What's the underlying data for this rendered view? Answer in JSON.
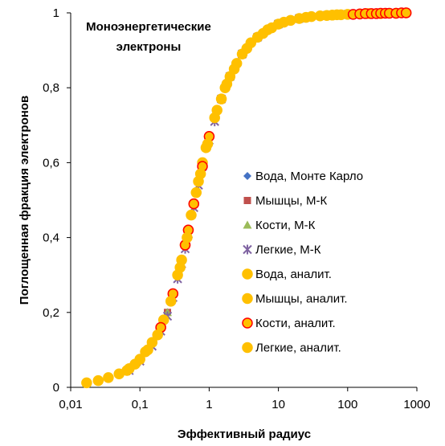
{
  "chart_data": {
    "type": "scatter",
    "annotation": [
      "Моноэнергетические",
      "электроны"
    ],
    "xlabel": "Эффективный радиус",
    "ylabel": "Поглощенная фракция электронов",
    "x_scale": "log",
    "xlim": [
      0.01,
      1000
    ],
    "ylim": [
      0,
      1
    ],
    "x_tick_labels": [
      "0,01",
      "0,1",
      "1",
      "10",
      "100",
      "1000"
    ],
    "y_tick_labels": [
      "0",
      "0,2",
      "0,4",
      "0,6",
      "0,8",
      "1"
    ],
    "grid": false,
    "legend_position": "right",
    "series": [
      {
        "name": "Вода, Монте Карло",
        "marker": "diamond",
        "color": "#4472C4",
        "points": [
          [
            0.017,
            0.012
          ],
          [
            0.035,
            0.026
          ],
          [
            0.07,
            0.05
          ],
          [
            0.1,
            0.075
          ],
          [
            0.15,
            0.12
          ],
          [
            0.2,
            0.16
          ],
          [
            0.25,
            0.2
          ],
          [
            0.3,
            0.25
          ],
          [
            0.35,
            0.3
          ],
          [
            0.4,
            0.34
          ],
          [
            0.45,
            0.38
          ],
          [
            0.5,
            0.42
          ],
          [
            0.55,
            0.46
          ],
          [
            0.6,
            0.49
          ],
          [
            0.7,
            0.55
          ],
          [
            0.8,
            0.6
          ],
          [
            0.9,
            0.64
          ],
          [
            1,
            0.67
          ],
          [
            1.2,
            0.72
          ],
          [
            1.5,
            0.77
          ],
          [
            2,
            0.83
          ],
          [
            3,
            0.89
          ],
          [
            5,
            0.935
          ],
          [
            7,
            0.955
          ],
          [
            10,
            0.97
          ],
          [
            20,
            0.985
          ],
          [
            50,
            0.993
          ],
          [
            100,
            0.996
          ],
          [
            200,
            0.998
          ],
          [
            500,
            0.999
          ],
          [
            700,
            1
          ]
        ]
      },
      {
        "name": "Мышцы, М-К",
        "marker": "square",
        "color": "#C0504D",
        "points": [
          [
            0.017,
            0.012
          ],
          [
            0.035,
            0.026
          ],
          [
            0.07,
            0.05
          ],
          [
            0.1,
            0.075
          ],
          [
            0.15,
            0.12
          ],
          [
            0.2,
            0.16
          ],
          [
            0.25,
            0.2
          ],
          [
            0.3,
            0.25
          ],
          [
            0.35,
            0.3
          ],
          [
            0.4,
            0.34
          ],
          [
            0.45,
            0.38
          ],
          [
            0.5,
            0.42
          ],
          [
            0.55,
            0.46
          ],
          [
            0.6,
            0.49
          ],
          [
            0.7,
            0.55
          ],
          [
            0.8,
            0.6
          ],
          [
            0.9,
            0.64
          ],
          [
            1,
            0.67
          ],
          [
            1.2,
            0.72
          ],
          [
            1.5,
            0.77
          ],
          [
            2,
            0.83
          ],
          [
            3,
            0.89
          ],
          [
            5,
            0.935
          ],
          [
            7,
            0.955
          ],
          [
            10,
            0.97
          ],
          [
            20,
            0.985
          ],
          [
            50,
            0.993
          ],
          [
            100,
            0.996
          ],
          [
            200,
            0.998
          ],
          [
            500,
            0.999
          ],
          [
            700,
            1
          ]
        ]
      },
      {
        "name": "Кости, М-К",
        "marker": "triangle",
        "color": "#9BBB59",
        "points": [
          [
            0.017,
            0.012
          ],
          [
            0.035,
            0.026
          ],
          [
            0.07,
            0.05
          ],
          [
            0.1,
            0.075
          ],
          [
            0.15,
            0.12
          ],
          [
            0.2,
            0.16
          ],
          [
            0.25,
            0.2
          ],
          [
            0.3,
            0.25
          ],
          [
            0.35,
            0.3
          ],
          [
            0.4,
            0.34
          ],
          [
            0.45,
            0.38
          ],
          [
            0.5,
            0.42
          ],
          [
            0.55,
            0.46
          ],
          [
            0.6,
            0.49
          ],
          [
            0.7,
            0.55
          ],
          [
            0.8,
            0.6
          ],
          [
            0.9,
            0.64
          ],
          [
            1,
            0.67
          ],
          [
            1.2,
            0.72
          ],
          [
            1.5,
            0.77
          ],
          [
            2,
            0.83
          ],
          [
            3,
            0.89
          ],
          [
            5,
            0.935
          ],
          [
            7,
            0.955
          ],
          [
            10,
            0.97
          ],
          [
            20,
            0.985
          ],
          [
            50,
            0.993
          ],
          [
            100,
            0.996
          ],
          [
            200,
            0.998
          ],
          [
            500,
            0.999
          ],
          [
            700,
            1
          ]
        ]
      },
      {
        "name": "Легкие, М-К",
        "marker": "star",
        "color": "#8064A2",
        "points": [
          [
            0.07,
            0.045
          ],
          [
            0.1,
            0.07
          ],
          [
            0.15,
            0.11
          ],
          [
            0.2,
            0.15
          ],
          [
            0.25,
            0.19
          ],
          [
            0.3,
            0.24
          ],
          [
            0.35,
            0.29
          ],
          [
            0.4,
            0.33
          ],
          [
            0.45,
            0.37
          ],
          [
            0.5,
            0.41
          ],
          [
            0.6,
            0.48
          ],
          [
            0.7,
            0.54
          ],
          [
            0.8,
            0.59
          ],
          [
            1,
            0.66
          ],
          [
            1.2,
            0.71
          ],
          [
            1.5,
            0.77
          ],
          [
            2,
            0.83
          ],
          [
            3,
            0.89
          ],
          [
            5,
            0.935
          ],
          [
            10,
            0.97
          ],
          [
            20,
            0.985
          ],
          [
            50,
            0.993
          ],
          [
            100,
            0.996
          ],
          [
            200,
            0.998
          ],
          [
            500,
            0.999
          ]
        ]
      },
      {
        "name": "Вода, аналит.",
        "marker": "circle",
        "color": "#FFC000",
        "edge": "#FFC000",
        "points": [
          [
            0.017,
            0.012
          ],
          [
            0.035,
            0.026
          ],
          [
            0.07,
            0.05
          ],
          [
            0.1,
            0.075
          ],
          [
            0.15,
            0.12
          ],
          [
            0.2,
            0.16
          ],
          [
            0.3,
            0.25
          ],
          [
            0.4,
            0.34
          ],
          [
            0.5,
            0.42
          ],
          [
            0.6,
            0.49
          ],
          [
            0.8,
            0.6
          ],
          [
            1,
            0.67
          ],
          [
            1.5,
            0.77
          ],
          [
            2,
            0.83
          ],
          [
            3,
            0.89
          ],
          [
            5,
            0.935
          ],
          [
            10,
            0.97
          ],
          [
            20,
            0.985
          ],
          [
            50,
            0.993
          ],
          [
            100,
            0.996
          ],
          [
            200,
            0.998
          ],
          [
            500,
            0.999
          ]
        ]
      },
      {
        "name": "Мышцы, аналит.",
        "marker": "circle",
        "color": "#FFC000",
        "edge": "#FFC000",
        "points": [
          [
            0.025,
            0.018
          ],
          [
            0.05,
            0.036
          ],
          [
            0.12,
            0.095
          ],
          [
            0.22,
            0.18
          ],
          [
            0.35,
            0.3
          ],
          [
            0.45,
            0.38
          ],
          [
            0.55,
            0.46
          ],
          [
            0.7,
            0.55
          ],
          [
            0.9,
            0.64
          ],
          [
            1.2,
            0.72
          ],
          [
            1.8,
            0.81
          ],
          [
            2.5,
            0.865
          ],
          [
            4,
            0.92
          ],
          [
            7,
            0.955
          ],
          [
            15,
            0.98
          ],
          [
            30,
            0.99
          ],
          [
            70,
            0.995
          ],
          [
            150,
            0.997
          ],
          [
            300,
            0.998
          ],
          [
            700,
            1
          ]
        ]
      },
      {
        "name": "Кости, аналит.",
        "marker": "circle",
        "color": "#FFC000",
        "edge": "#FF0000",
        "points": [
          [
            0.2,
            0.16
          ],
          [
            0.3,
            0.25
          ],
          [
            0.45,
            0.38
          ],
          [
            0.5,
            0.42
          ],
          [
            0.6,
            0.49
          ],
          [
            0.8,
            0.59
          ],
          [
            1,
            0.67
          ],
          [
            120,
            0.996
          ],
          [
            150,
            0.997
          ],
          [
            180,
            0.998
          ],
          [
            220,
            0.998
          ],
          [
            260,
            0.998
          ],
          [
            300,
            0.999
          ],
          [
            350,
            0.999
          ],
          [
            400,
            0.999
          ],
          [
            500,
            0.999
          ],
          [
            600,
            1
          ],
          [
            700,
            1
          ]
        ]
      },
      {
        "name": "Легкие, аналит.",
        "marker": "circle",
        "color": "#FFC000",
        "edge": "#FFC000",
        "points": [
          [
            0.065,
            0.045
          ],
          [
            0.085,
            0.062
          ],
          [
            0.13,
            0.1
          ],
          [
            0.18,
            0.14
          ],
          [
            0.28,
            0.23
          ],
          [
            0.38,
            0.32
          ],
          [
            0.48,
            0.4
          ],
          [
            0.65,
            0.52
          ],
          [
            0.75,
            0.57
          ],
          [
            0.95,
            0.65
          ],
          [
            1.3,
            0.74
          ],
          [
            1.7,
            0.8
          ],
          [
            2.3,
            0.85
          ],
          [
            3.5,
            0.905
          ],
          [
            6,
            0.945
          ],
          [
            8,
            0.96
          ],
          [
            12,
            0.975
          ],
          [
            25,
            0.988
          ],
          [
            40,
            0.992
          ],
          [
            60,
            0.994
          ],
          [
            80,
            0.995
          ]
        ]
      }
    ]
  }
}
